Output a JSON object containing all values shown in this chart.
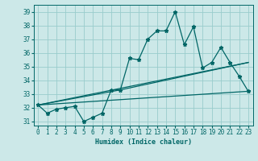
{
  "xlabel": "Humidex (Indice chaleur)",
  "ylabel": "",
  "bg_color": "#cce8e8",
  "grid_color": "#99cccc",
  "line_color": "#006666",
  "xlim": [
    -0.5,
    23.5
  ],
  "ylim": [
    30.7,
    39.5
  ],
  "xticks": [
    0,
    1,
    2,
    3,
    4,
    5,
    6,
    7,
    8,
    9,
    10,
    11,
    12,
    13,
    14,
    15,
    16,
    17,
    18,
    19,
    20,
    21,
    22,
    23
  ],
  "yticks": [
    31,
    32,
    33,
    34,
    35,
    36,
    37,
    38,
    39
  ],
  "series1": {
    "x": [
      0,
      1,
      2,
      3,
      4,
      5,
      6,
      7,
      8,
      9,
      10,
      11,
      12,
      13,
      14,
      15,
      16,
      17,
      18,
      19,
      20,
      21,
      22,
      23
    ],
    "y": [
      32.2,
      31.6,
      31.9,
      32.0,
      32.1,
      31.0,
      31.3,
      31.6,
      33.3,
      33.3,
      35.6,
      35.5,
      37.0,
      37.6,
      37.6,
      39.0,
      36.6,
      37.9,
      34.9,
      35.3,
      36.4,
      35.3,
      34.3,
      33.2
    ]
  },
  "series2": {
    "x": [
      0,
      23
    ],
    "y": [
      32.2,
      33.2
    ]
  },
  "series3": {
    "x": [
      0,
      23
    ],
    "y": [
      32.2,
      35.3
    ]
  },
  "series4": {
    "x": [
      0,
      9,
      23
    ],
    "y": [
      32.2,
      33.3,
      35.3
    ]
  }
}
